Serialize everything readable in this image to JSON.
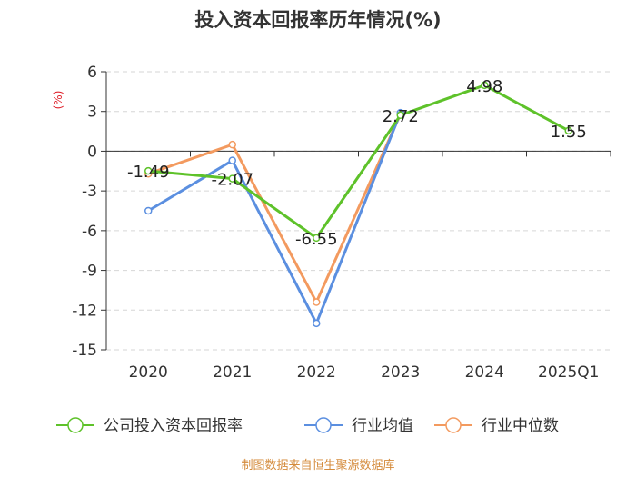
{
  "chart_data": {
    "type": "line",
    "title": "投入资本回报率历年情况(%)",
    "ylabel": "(%)",
    "xlabel": "",
    "categories": [
      "2020",
      "2021",
      "2022",
      "2023",
      "2024",
      "2025Q1"
    ],
    "ylim": [
      -15,
      6
    ],
    "yticks": [
      6,
      3,
      0,
      -3,
      -6,
      -9,
      -12,
      -15
    ],
    "grid": true,
    "legend_position": "bottom",
    "series": [
      {
        "name": "公司投入资本回报率",
        "color": "#5ec22a",
        "values": [
          -1.49,
          -2.07,
          -6.55,
          2.72,
          4.98,
          1.55
        ],
        "labels": [
          "-1.49",
          "-2.07",
          "-6.55",
          "2.72",
          "4.98",
          "1.55"
        ]
      },
      {
        "name": "行业均值",
        "color": "#5b8fe0",
        "values": [
          -4.5,
          -0.7,
          -13.0,
          2.9,
          null,
          null
        ]
      },
      {
        "name": "行业中位数",
        "color": "#f39a5f",
        "values": [
          -1.7,
          0.5,
          -11.4,
          2.8,
          null,
          null
        ]
      }
    ]
  },
  "footer": "制图数据来自恒生聚源数据库"
}
